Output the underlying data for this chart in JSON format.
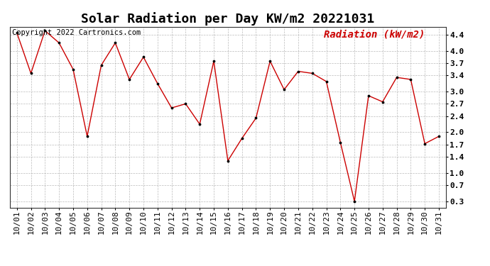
{
  "title": "Solar Radiation per Day KW/m2 20221031",
  "copyright_text": "Copyright 2022 Cartronics.com",
  "legend_label": "Radiation (kW/m2)",
  "dates": [
    "10/01",
    "10/02",
    "10/03",
    "10/04",
    "10/05",
    "10/06",
    "10/07",
    "10/08",
    "10/09",
    "10/10",
    "10/11",
    "10/12",
    "10/13",
    "10/14",
    "10/15",
    "10/16",
    "10/17",
    "10/18",
    "10/19",
    "10/20",
    "10/21",
    "10/22",
    "10/23",
    "10/24",
    "10/25",
    "10/26",
    "10/27",
    "10/28",
    "10/29",
    "10/30",
    "10/31"
  ],
  "values": [
    4.45,
    3.45,
    4.5,
    4.2,
    3.55,
    1.9,
    3.65,
    4.2,
    3.3,
    3.85,
    3.2,
    2.6,
    2.7,
    2.2,
    3.75,
    1.3,
    1.85,
    2.35,
    3.75,
    3.05,
    3.5,
    3.45,
    3.25,
    1.75,
    0.3,
    2.9,
    2.75,
    3.35,
    3.3,
    1.72,
    1.9
  ],
  "line_color": "#cc0000",
  "marker": ".",
  "marker_color": "#000000",
  "ylim_min": 0.15,
  "ylim_max": 4.6,
  "yticks": [
    0.3,
    0.7,
    1.0,
    1.4,
    1.7,
    2.0,
    2.4,
    2.7,
    3.0,
    3.4,
    3.7,
    4.0,
    4.4
  ],
  "background_color": "#ffffff",
  "grid_color": "#aaaaaa",
  "title_fontsize": 13,
  "tick_fontsize": 8,
  "legend_fontsize": 10,
  "copyright_fontsize": 7.5
}
